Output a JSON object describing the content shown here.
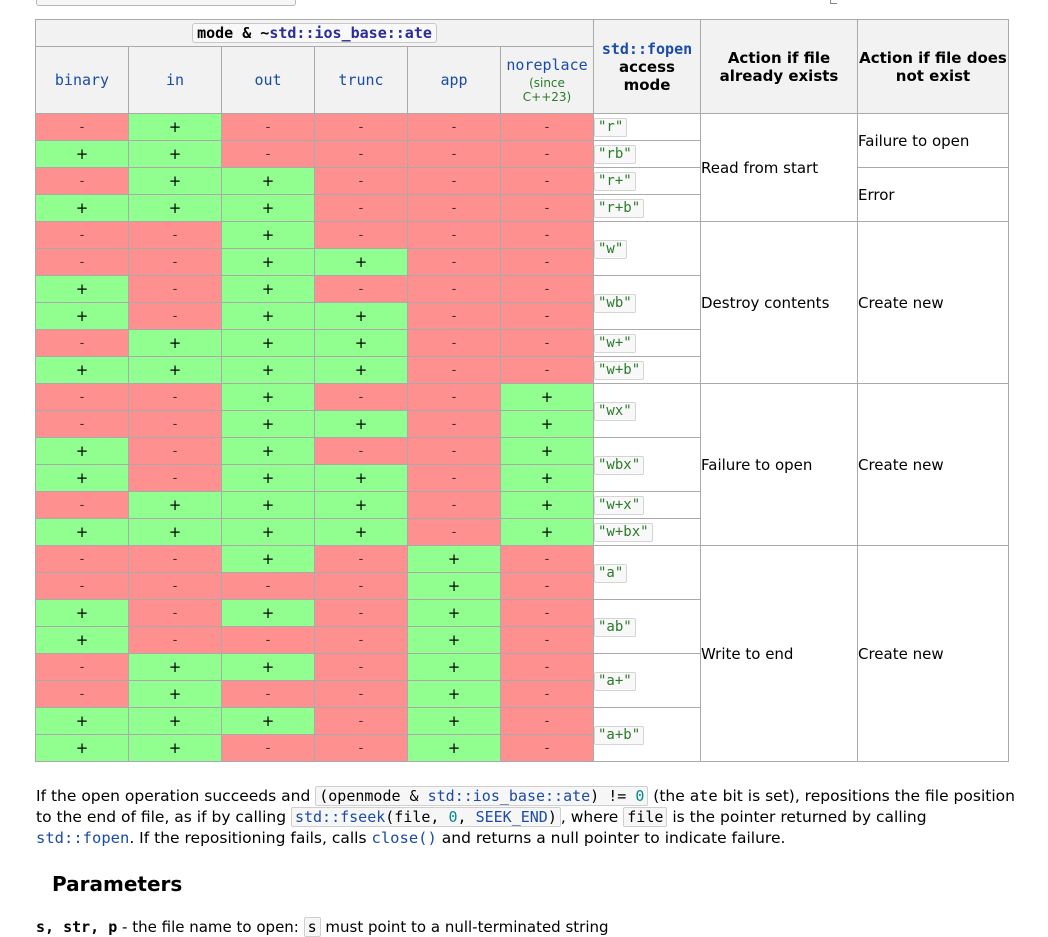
{
  "header": {
    "group_prefix": "mode & ~",
    "group_code": "std::ios_base::ate",
    "flags": [
      "binary",
      "in",
      "out",
      "trunc",
      "app",
      "noreplace"
    ],
    "since_line1": "(since",
    "since_line2": "C++23)",
    "fopen_fn": "std::fopen",
    "fopen_rest": "access mode",
    "action_exists": "Action if file already exists",
    "action_not_exist": "Action if file does not exist"
  },
  "symbols": {
    "yes": "+",
    "no": "-"
  },
  "rows": [
    [
      0,
      1,
      0,
      0,
      0,
      0
    ],
    [
      1,
      1,
      0,
      0,
      0,
      0
    ],
    [
      0,
      1,
      1,
      0,
      0,
      0
    ],
    [
      1,
      1,
      1,
      0,
      0,
      0
    ],
    [
      0,
      0,
      1,
      0,
      0,
      0
    ],
    [
      0,
      0,
      1,
      1,
      0,
      0
    ],
    [
      1,
      0,
      1,
      0,
      0,
      0
    ],
    [
      1,
      0,
      1,
      1,
      0,
      0
    ],
    [
      0,
      1,
      1,
      1,
      0,
      0
    ],
    [
      1,
      1,
      1,
      1,
      0,
      0
    ],
    [
      0,
      0,
      1,
      0,
      0,
      1
    ],
    [
      0,
      0,
      1,
      1,
      0,
      1
    ],
    [
      1,
      0,
      1,
      0,
      0,
      1
    ],
    [
      1,
      0,
      1,
      1,
      0,
      1
    ],
    [
      0,
      1,
      1,
      1,
      0,
      1
    ],
    [
      1,
      1,
      1,
      1,
      0,
      1
    ],
    [
      0,
      0,
      1,
      0,
      1,
      0
    ],
    [
      0,
      0,
      0,
      0,
      1,
      0
    ],
    [
      1,
      0,
      1,
      0,
      1,
      0
    ],
    [
      1,
      0,
      0,
      0,
      1,
      0
    ],
    [
      0,
      1,
      1,
      0,
      1,
      0
    ],
    [
      0,
      1,
      0,
      0,
      1,
      0
    ],
    [
      1,
      1,
      1,
      0,
      1,
      0
    ],
    [
      1,
      1,
      0,
      0,
      1,
      0
    ]
  ],
  "modes": [
    {
      "label": "\"r\"",
      "span": 1
    },
    {
      "label": "\"rb\"",
      "span": 1
    },
    {
      "label": "\"r+\"",
      "span": 1
    },
    {
      "label": "\"r+b\"",
      "span": 1
    },
    {
      "label": "\"w\"",
      "span": 2
    },
    {
      "label": "\"wb\"",
      "span": 2
    },
    {
      "label": "\"w+\"",
      "span": 1
    },
    {
      "label": "\"w+b\"",
      "span": 1
    },
    {
      "label": "\"wx\"",
      "span": 2
    },
    {
      "label": "\"wbx\"",
      "span": 2
    },
    {
      "label": "\"w+x\"",
      "span": 1
    },
    {
      "label": "\"w+bx\"",
      "span": 1
    },
    {
      "label": "\"a\"",
      "span": 2
    },
    {
      "label": "\"ab\"",
      "span": 2
    },
    {
      "label": "\"a+\"",
      "span": 2
    },
    {
      "label": "\"a+b\"",
      "span": 2
    }
  ],
  "actions_exists": [
    {
      "text": "Read from start",
      "span": 4
    },
    {
      "text": "Destroy contents",
      "span": 6
    },
    {
      "text": "Failure to open",
      "span": 6
    },
    {
      "text": "Write to end",
      "span": 8
    }
  ],
  "actions_not_exist": [
    {
      "text": "Failure to open",
      "span": 2
    },
    {
      "text": "Error",
      "span": 2
    },
    {
      "text": "Create new",
      "span": 6
    },
    {
      "text": "Create new",
      "span": 6
    },
    {
      "text": "Create new",
      "span": 8
    }
  ],
  "paragraph": {
    "t1": "If the open operation succeeds and ",
    "c1_a": "(openmode & ",
    "c1_b": "std::ios_base::ate",
    "c1_c": ") != ",
    "c1_d": "0",
    "t2": " (the ",
    "ate": "ate",
    "t3": " bit is set), repositions the file position to the end of file, as if by calling ",
    "c2_a": "std::fseek",
    "c2_b": "(file, ",
    "c2_c": "0",
    "c2_d": ", ",
    "c2_e": "SEEK_END",
    "c2_f": ")",
    "t4": ", where ",
    "c3": "file",
    "t5": " is the pointer returned by calling ",
    "l1": "std::fopen",
    "t6": ". If the repositioning fails, calls ",
    "l2": "close()",
    "t7": " and returns a null pointer to indicate failure."
  },
  "params": {
    "heading": "Parameters",
    "names": "s, str, p",
    "dash": " - ",
    "desc1": " the file name to open: ",
    "code": "s",
    "desc2": " must point to a null-terminated string"
  },
  "colors": {
    "yes": "#90ff90",
    "no": "#ff9090",
    "header": "#f2f2f2",
    "link": "#1a4ba8"
  }
}
